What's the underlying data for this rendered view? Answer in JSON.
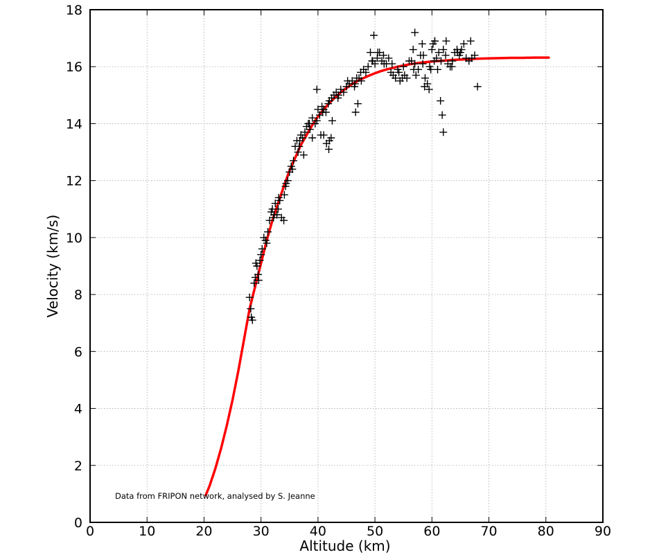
{
  "chart_data": {
    "type": "scatter",
    "xlabel": "Altitude (km)",
    "ylabel": "Velocity (km/s)",
    "xlim": [
      0,
      90
    ],
    "ylim": [
      0,
      18
    ],
    "xticks": [
      "0",
      "10",
      "20",
      "30",
      "40",
      "50",
      "60",
      "70",
      "80",
      "90"
    ],
    "yticks": [
      "0",
      "2",
      "4",
      "6",
      "8",
      "10",
      "12",
      "14",
      "16",
      "18"
    ],
    "grid": true,
    "annotation": "Data from FRIPON network, analysed by S. Jeanne",
    "colors": {
      "points": "#000000",
      "fit": "#ff0000"
    },
    "series": [
      {
        "kind": "points",
        "marker": "plus",
        "x": [
          28.0,
          28.3,
          28.5,
          28.8,
          29.0,
          29.3,
          29.5,
          29.8,
          30.0,
          30.5,
          30.8,
          31.2,
          31.5,
          31.8,
          32.0,
          32.3,
          32.5,
          33.0,
          33.3,
          33.6,
          34.0,
          34.3,
          34.7,
          35.0,
          35.3,
          35.7,
          36.0,
          36.3,
          36.7,
          37.0,
          37.3,
          37.7,
          38.0,
          38.3,
          38.6,
          39.0,
          39.5,
          40.0,
          40.3,
          40.7,
          41.0,
          41.4,
          41.8,
          42.0,
          42.4,
          42.8,
          43.2,
          43.6,
          44.0,
          44.5,
          45.0,
          45.5,
          46.0,
          46.4,
          46.8,
          47.2,
          47.6,
          48.0,
          48.4,
          48.8,
          49.2,
          49.6,
          50.0,
          50.4,
          50.8,
          51.2,
          51.6,
          52.0,
          52.4,
          52.8,
          53.2,
          53.6,
          54.0,
          54.4,
          54.8,
          55.2,
          55.6,
          56.0,
          56.4,
          56.8,
          57.2,
          57.6,
          58.0,
          58.4,
          58.8,
          59.2,
          59.6,
          60.0,
          60.4,
          60.8,
          61.2,
          61.6,
          62.0,
          62.4,
          62.8,
          63.2,
          63.6,
          64.0,
          64.4,
          64.8,
          65.2,
          65.6,
          66.0,
          66.5,
          67.0,
          67.5,
          68.0,
          28.2,
          29.1,
          30.2,
          31.0,
          32.2,
          33.1,
          34.4,
          35.5,
          36.5,
          37.5,
          38.5,
          39.8,
          40.5,
          41.5,
          42.5,
          43.5,
          45.2,
          46.5,
          47.5,
          49.5,
          50.5,
          53.0,
          55.0,
          57.0,
          58.5,
          59.5,
          60.5,
          61.5,
          61.8,
          62.0,
          29.6,
          32.8,
          34.1,
          36.8,
          39.0,
          40.8,
          41.9,
          42.3,
          47.0,
          51.5,
          54.2,
          56.7,
          58.7,
          59.8,
          60.2,
          61.0,
          63.5,
          65.0,
          66.8,
          41.0,
          42.0,
          46.6,
          39.8,
          49.8,
          57.0,
          58.3,
          60.5,
          62.5,
          64.5
        ],
        "y": [
          7.9,
          7.2,
          7.1,
          8.4,
          8.6,
          9.0,
          8.7,
          9.2,
          9.4,
          10.0,
          9.9,
          10.2,
          10.6,
          10.9,
          11.0,
          10.8,
          11.2,
          11.0,
          11.3,
          10.7,
          10.6,
          11.8,
          12.0,
          12.3,
          12.5,
          12.7,
          13.2,
          13.4,
          13.2,
          13.6,
          13.5,
          13.7,
          13.9,
          14.0,
          13.8,
          14.2,
          14.0,
          14.5,
          14.3,
          14.6,
          14.5,
          14.4,
          14.7,
          14.8,
          14.9,
          15.0,
          15.1,
          15.0,
          15.2,
          15.1,
          15.3,
          15.4,
          15.5,
          15.3,
          15.6,
          15.6,
          15.5,
          15.9,
          15.8,
          16.0,
          16.5,
          16.2,
          16.1,
          16.3,
          16.5,
          16.2,
          16.1,
          16.1,
          16.3,
          15.8,
          15.7,
          15.6,
          15.9,
          15.5,
          15.6,
          15.7,
          15.6,
          16.2,
          16.2,
          15.9,
          15.7,
          15.9,
          16.4,
          16.1,
          15.6,
          15.4,
          16.0,
          16.6,
          16.2,
          16.3,
          16.5,
          16.2,
          16.6,
          16.4,
          16.1,
          16.0,
          16.2,
          16.5,
          16.6,
          16.4,
          16.6,
          16.8,
          16.3,
          16.2,
          16.3,
          16.4,
          15.3,
          7.5,
          9.1,
          9.6,
          9.8,
          10.7,
          11.4,
          11.9,
          12.4,
          13.0,
          12.9,
          14.0,
          14.1,
          13.6,
          13.3,
          14.1,
          14.9,
          15.5,
          15.4,
          15.8,
          16.2,
          16.5,
          16.1,
          16.0,
          16.1,
          16.4,
          15.2,
          16.9,
          14.8,
          14.3,
          13.7,
          8.5,
          10.8,
          11.5,
          13.4,
          13.5,
          14.4,
          13.1,
          13.5,
          14.7,
          16.4,
          15.8,
          16.6,
          15.3,
          15.9,
          16.8,
          15.9,
          16.0,
          16.5,
          16.9,
          13.6,
          13.4,
          14.4,
          15.2,
          17.1,
          17.2,
          16.8,
          16.9,
          16.9,
          16.5
        ]
      },
      {
        "kind": "fit",
        "x": [
          20.3,
          21,
          22,
          23,
          24,
          25,
          26,
          27,
          28,
          29,
          30,
          31,
          32,
          33,
          34,
          35,
          36,
          37,
          38,
          39,
          40,
          41,
          42,
          43,
          44,
          45,
          46,
          47,
          48,
          49,
          50,
          51,
          52,
          53,
          54,
          55,
          56,
          57,
          58,
          59,
          60,
          62,
          64,
          66,
          68,
          70,
          72,
          74,
          76,
          78,
          80.5
        ],
        "y": [
          0.95,
          1.3,
          1.9,
          2.6,
          3.4,
          4.3,
          5.3,
          6.4,
          7.5,
          8.3,
          9.1,
          9.9,
          10.6,
          11.2,
          11.8,
          12.35,
          12.8,
          13.25,
          13.6,
          13.95,
          14.25,
          14.5,
          14.72,
          14.92,
          15.1,
          15.25,
          15.39,
          15.5,
          15.6,
          15.69,
          15.77,
          15.84,
          15.9,
          15.95,
          16.0,
          16.04,
          16.08,
          16.11,
          16.14,
          16.16,
          16.18,
          16.21,
          16.24,
          16.26,
          16.28,
          16.29,
          16.3,
          16.31,
          16.31,
          16.32,
          16.32
        ]
      }
    ]
  }
}
